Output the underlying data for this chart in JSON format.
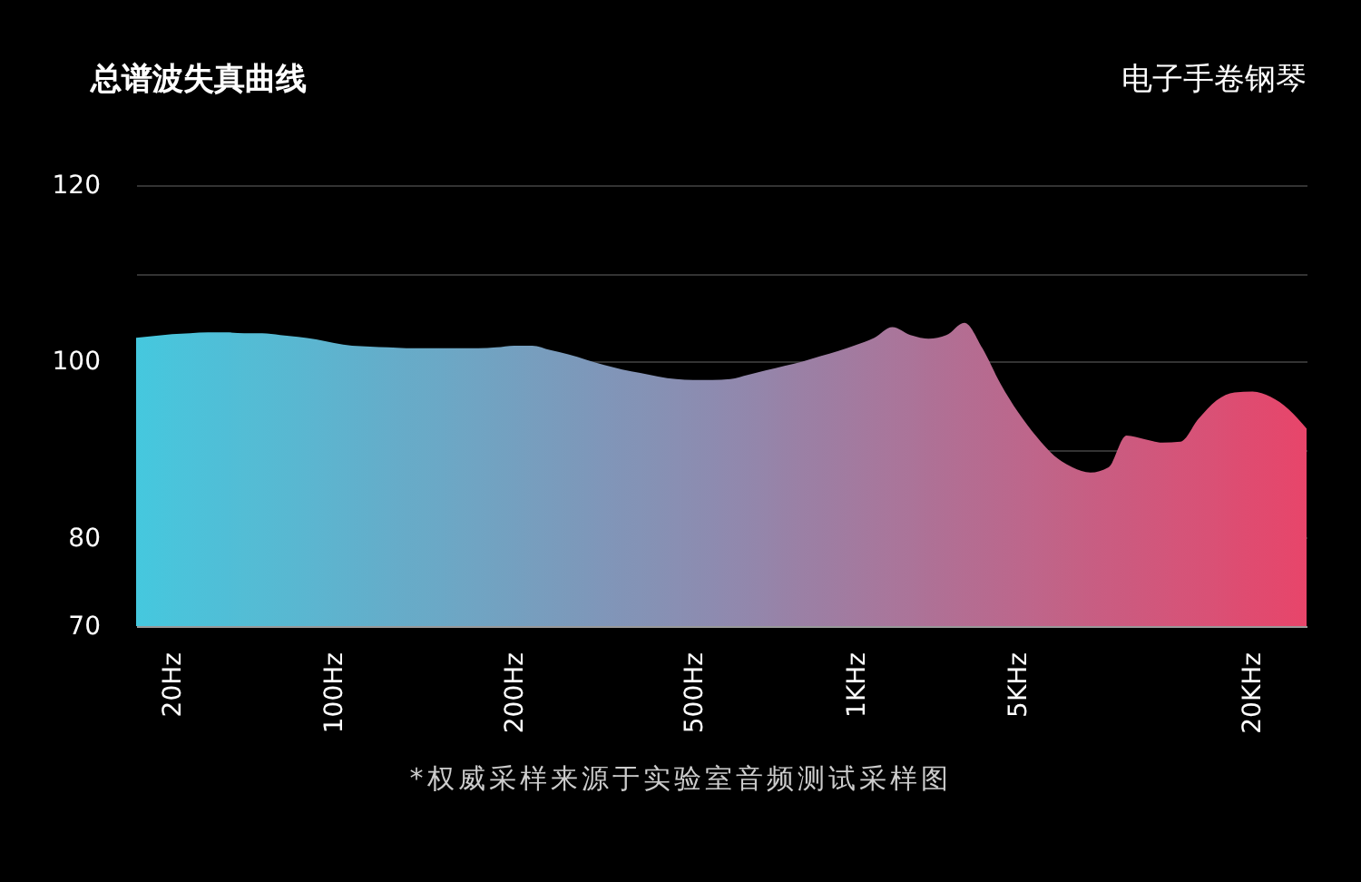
{
  "chart_data": {
    "type": "area",
    "title": "总谱波失真曲线",
    "subtitle": "电子手卷钢琴",
    "annotations": [
      "*权威采样来源于实验室音频测试采样图"
    ],
    "categories": [
      null,
      null,
      "20Hz",
      null,
      null,
      null,
      null,
      null,
      null,
      null,
      null,
      "100Hz",
      null,
      null,
      null,
      null,
      null,
      null,
      null,
      null,
      null,
      "200Hz",
      null,
      null,
      null,
      null,
      null,
      null,
      null,
      null,
      null,
      "500Hz",
      null,
      null,
      null,
      null,
      null,
      null,
      null,
      null,
      "1KHz",
      null,
      null,
      null,
      null,
      null,
      null,
      null,
      null,
      "5KHz",
      null,
      null,
      null,
      null,
      null,
      null,
      null,
      null,
      null,
      null,
      null,
      null,
      "20KHz",
      null,
      null,
      null
    ],
    "series": [
      {
        "colors": [
          "#45c8de",
          "#47c6dd",
          "#4ac4db",
          "#4cc2da",
          "#4ec0d8",
          "#50bed7",
          "#53bdd5",
          "#55bbd4",
          "#57b9d2",
          "#59b7d1",
          "#5cb5d0",
          "#5eb3ce",
          "#60b1cd",
          "#62afcb",
          "#65adca",
          "#67abc8",
          "#69aac7",
          "#6ba8c6",
          "#6ea6c4",
          "#70a4c3",
          "#72a2c1",
          "#74a0c0",
          "#779ebe",
          "#799cbd",
          "#7b9abb",
          "#7d98ba",
          "#8096b9",
          "#8294b7",
          "#8493b6",
          "#8691b4",
          "#898fb3",
          "#8b8db1",
          "#8d8bb0",
          "#9089ae",
          "#9287ac",
          "#9585aa",
          "#9882a7",
          "#9b80a5",
          "#9d7ea3",
          "#a07ca1",
          "#a37a9f",
          "#a6789d",
          "#a9769b",
          "#ab7499",
          "#ae7196",
          "#b16f94",
          "#b46d92",
          "#b66b90",
          "#b9698e",
          "#bc678c",
          "#bf658a",
          "#c16387",
          "#c46185",
          "#c75e83",
          "#ca5c81",
          "#cc5a7f",
          "#cf587d",
          "#d2567b",
          "#d55479",
          "#d75277",
          "#da5075",
          "#dd4d72",
          "#e04b70",
          "#e2496e",
          "#e5476c",
          "#e8456a"
        ],
        "values": [
          102.7,
          102.9,
          103.1,
          103.2,
          103.3,
          103.3,
          103.2,
          103.2,
          103.0,
          102.8,
          102.5,
          102.1,
          101.8,
          101.7,
          101.6,
          101.5,
          101.5,
          101.5,
          101.5,
          101.5,
          101.6,
          101.8,
          101.8,
          101.3,
          100.8,
          100.2,
          99.6,
          99.1,
          98.7,
          98.3,
          98.0,
          97.9,
          97.9,
          98.0,
          98.5,
          99.0,
          99.5,
          100.0,
          100.6,
          101.2,
          101.9,
          102.7,
          103.9,
          103.0,
          102.6,
          103.0,
          104.4,
          101.5,
          97.5,
          94.2,
          91.5,
          89.3,
          88.0,
          87.4,
          88.0,
          91.6,
          91.2,
          90.8,
          90.9,
          93.5,
          95.6,
          96.5,
          96.6,
          96.0,
          94.6,
          92.4
        ]
      }
    ],
    "ylim": [
      70,
      120
    ],
    "yticks": [
      70,
      80,
      {
        "value": 90,
        "label": null
      },
      100,
      {
        "value": 110,
        "label": null
      },
      120
    ],
    "grid": "y"
  }
}
